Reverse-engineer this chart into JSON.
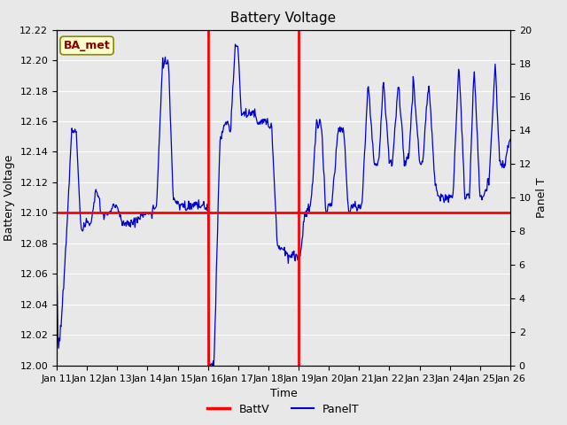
{
  "title": "Battery Voltage",
  "xlabel": "Time",
  "ylabel_left": "Battery Voltage",
  "ylabel_right": "Panel T",
  "ylim_left": [
    12.0,
    12.22
  ],
  "ylim_right": [
    0,
    20
  ],
  "yticks_left": [
    12.0,
    12.02,
    12.04,
    12.06,
    12.08,
    12.1,
    12.12,
    12.14,
    12.16,
    12.18,
    12.2,
    12.22
  ],
  "yticks_right": [
    0,
    2,
    4,
    6,
    8,
    10,
    12,
    14,
    16,
    18,
    20
  ],
  "x_labels": [
    "Jan 11",
    "Jan 12",
    "Jan 13",
    "Jan 14",
    "Jan 15",
    "Jan 16",
    "Jan 17",
    "Jan 18",
    "Jan 19",
    "Jan 20",
    "Jan 21",
    "Jan 22",
    "Jan 23",
    "Jan 24",
    "Jan 25",
    "Jan 26"
  ],
  "battv_hline": 12.1,
  "battv_vline1": 5.0,
  "battv_vline2": 8.0,
  "background_color": "#E8E8E8",
  "battv_color": "#FF0000",
  "panelT_color": "#0000CC",
  "annotation_text": "BA_met",
  "annotation_bg": "#FFFFCC",
  "annotation_border": "#888800",
  "annotation_text_color": "#880000",
  "grid_color": "#FFFFFF",
  "title_fontsize": 11,
  "label_fontsize": 9,
  "tick_fontsize": 8,
  "panelT_key_t": [
    0.0,
    0.05,
    0.15,
    0.3,
    0.5,
    0.65,
    0.8,
    1.0,
    1.15,
    1.3,
    1.5,
    1.7,
    1.9,
    2.0,
    2.15,
    2.4,
    2.6,
    2.8,
    3.0,
    3.1,
    3.3,
    3.5,
    3.7,
    3.85,
    4.0,
    4.1,
    4.3,
    4.5,
    4.65,
    4.8,
    4.95,
    5.0,
    5.05,
    5.2,
    5.4,
    5.6,
    5.75,
    5.9,
    6.0,
    6.1,
    6.3,
    6.5,
    6.65,
    6.8,
    7.0,
    7.1,
    7.3,
    7.5,
    7.65,
    7.8,
    8.0,
    8.05,
    8.2,
    8.4,
    8.6,
    8.75,
    8.9,
    9.0,
    9.1,
    9.3,
    9.5,
    9.65,
    9.8,
    10.0,
    10.1,
    10.3,
    10.5,
    10.65,
    10.8,
    11.0,
    11.1,
    11.3,
    11.5,
    11.65,
    11.8,
    12.0,
    12.1,
    12.3,
    12.5,
    12.65,
    12.8,
    13.0,
    13.1,
    13.3,
    13.5,
    13.65,
    13.8,
    14.0,
    14.1,
    14.3,
    14.5,
    14.65,
    14.8,
    15.0
  ],
  "panelT_key_v": [
    6.0,
    1.0,
    2.5,
    7.0,
    14.0,
    14.0,
    8.0,
    8.5,
    8.5,
    10.5,
    9.0,
    9.0,
    9.5,
    9.5,
    8.5,
    8.5,
    8.5,
    9.0,
    9.0,
    9.0,
    9.5,
    18.0,
    18.0,
    10.0,
    9.5,
    9.5,
    9.5,
    9.5,
    9.5,
    9.5,
    9.5,
    9.5,
    0.0,
    0.0,
    13.5,
    14.5,
    14.0,
    19.0,
    19.0,
    15.0,
    15.0,
    15.0,
    14.5,
    14.5,
    14.5,
    14.5,
    7.0,
    7.0,
    6.5,
    6.5,
    6.5,
    6.5,
    9.0,
    9.5,
    14.5,
    14.5,
    9.0,
    9.5,
    9.5,
    14.0,
    14.0,
    9.0,
    9.5,
    9.5,
    9.5,
    17.0,
    12.0,
    12.0,
    17.0,
    12.0,
    12.0,
    17.0,
    12.0,
    12.5,
    17.0,
    12.0,
    12.0,
    17.0,
    11.0,
    10.0,
    10.0,
    10.0,
    10.0,
    18.0,
    10.0,
    10.0,
    18.0,
    10.0,
    10.0,
    11.0,
    18.0,
    12.0,
    12.0,
    13.5
  ]
}
